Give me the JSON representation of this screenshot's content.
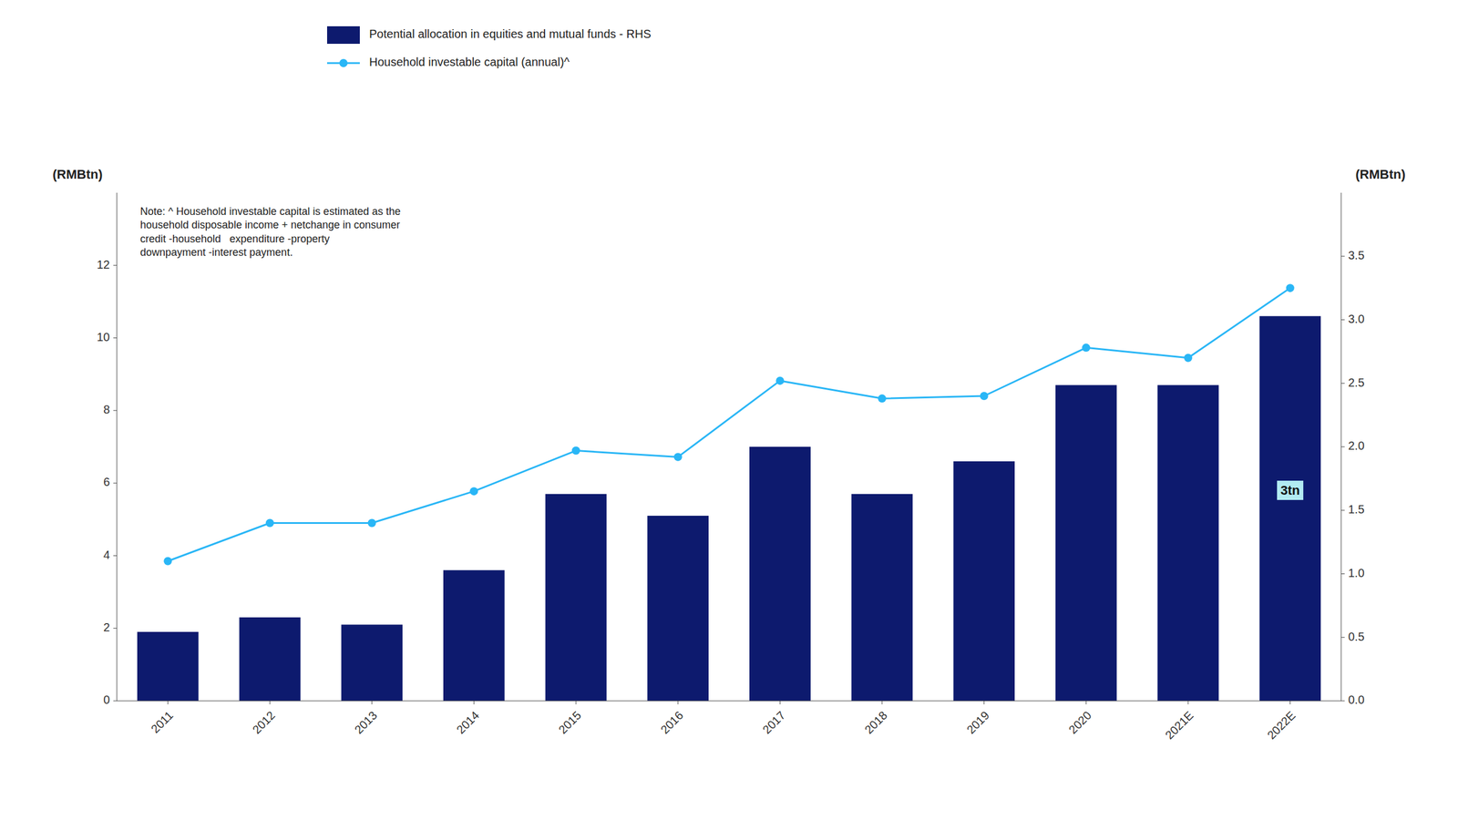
{
  "chart_data": {
    "type": "bar",
    "categories": [
      "2011",
      "2012",
      "2013",
      "2014",
      "2015",
      "2016",
      "2017",
      "2018",
      "2019",
      "2020",
      "2021E",
      "2022E"
    ],
    "series": [
      {
        "name": "Potential allocation in equities and mutual funds - RHS",
        "type": "bar",
        "color": "#0d1a6e",
        "values": [
          1.9,
          2.3,
          2.1,
          3.6,
          5.7,
          5.1,
          7.0,
          5.7,
          6.6,
          8.7,
          8.7,
          10.6
        ]
      },
      {
        "name": "Household investable capital (annual)^",
        "type": "line",
        "axis": "y2",
        "color": "#29b6f6",
        "marker": "circle",
        "values": [
          1.1,
          1.4,
          1.4,
          1.65,
          1.97,
          1.92,
          2.52,
          2.38,
          2.4,
          2.78,
          2.7,
          3.25
        ]
      }
    ],
    "ylabel": "(RMBtn)",
    "y2label": "(RMBtn)",
    "ylim": [
      0,
      14
    ],
    "yticks": [
      0,
      2,
      4,
      6,
      8,
      10,
      12
    ],
    "y2lim": [
      0,
      4.0
    ],
    "y2ticks": [
      {
        "value": 0.0,
        "label": "0.0"
      },
      0.5,
      {
        "value": 1.0,
        "label": "1.0"
      },
      1.5,
      {
        "value": 2.0,
        "label": "2.0"
      },
      2.5,
      {
        "value": 3.0,
        "label": "3.0"
      },
      3.5
    ],
    "annotations": [
      {
        "text": "3tn",
        "category": "2022E",
        "y": 5.8,
        "color": "#b2ebf2"
      },
      {
        "text": "Note: ^ Household investable capital is estimated as the\nhousehold disposable income + netchange in consumer\ncredit -household   expenditure -property\ndownpayment -interest payment."
      }
    ],
    "legend": "top",
    "grid": false
  }
}
